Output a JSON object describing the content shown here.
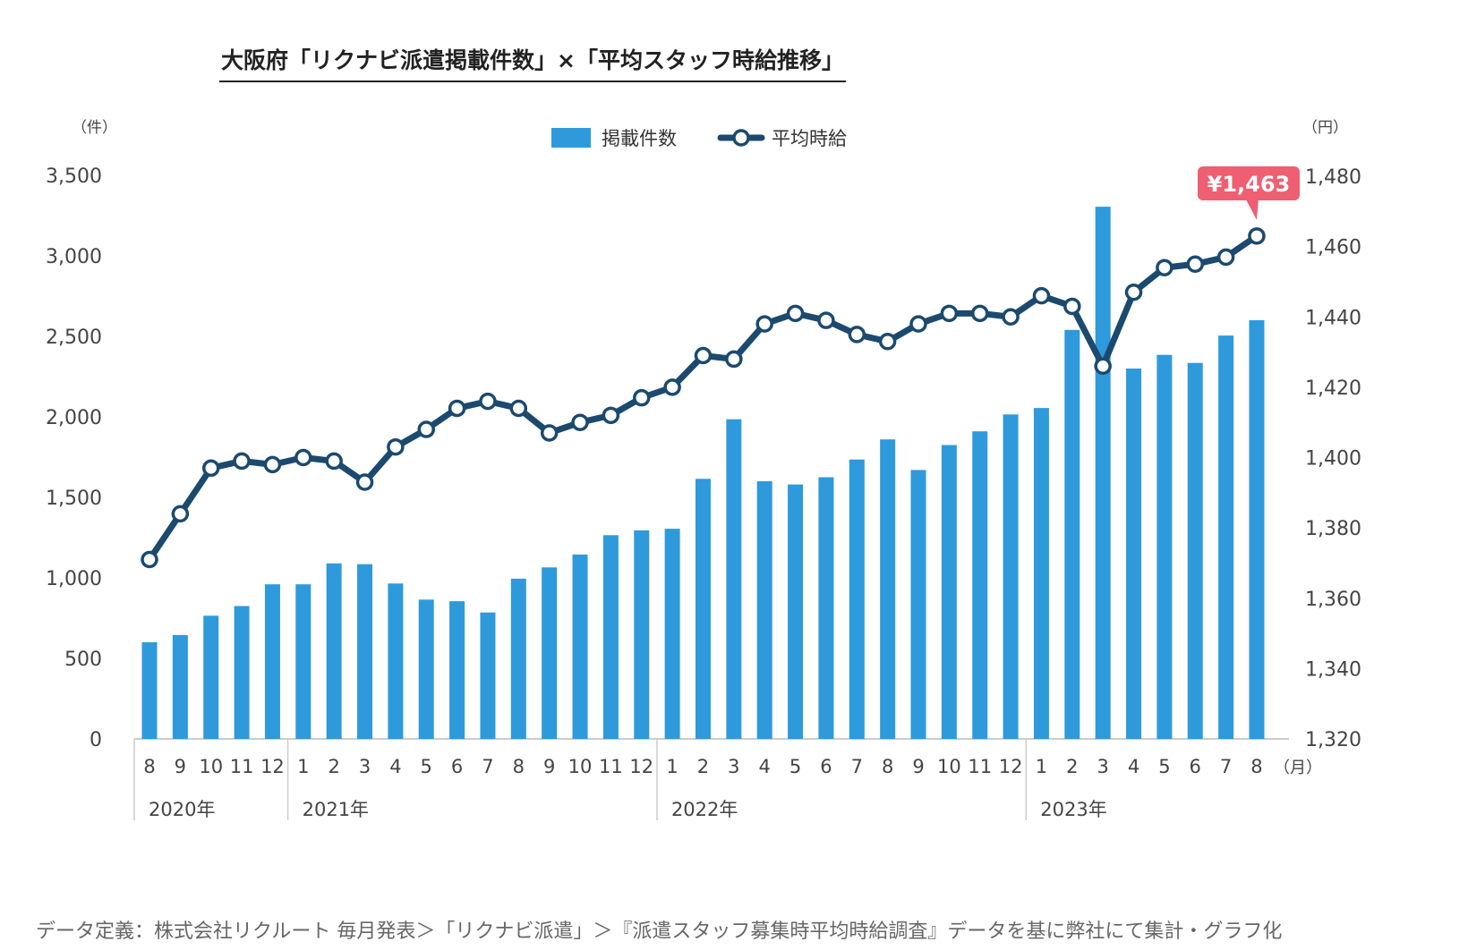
{
  "chart_data": {
    "type": "bar",
    "title": "大阪府「リクナビ派遣掲載件数」×「平均スタッフ時給推移」",
    "source": "データ定義：株式会社リクルート 毎月発表＞「リクナビ派遣」＞『派遣スタッフ募集時平均時給調査』データを基に弊社にて集計・グラフ化",
    "left_axis_unit": "（件）",
    "right_axis_unit": "（円）",
    "x_unit": "（月）",
    "ylim_left": [
      0,
      3500
    ],
    "ylim_right": [
      1320,
      1480
    ],
    "left_ticks": [
      "0",
      "500",
      "1,000",
      "1,500",
      "2,000",
      "2,500",
      "3,000",
      "3,500"
    ],
    "right_ticks": [
      "1,320",
      "1,340",
      "1,360",
      "1,380",
      "1,400",
      "1,420",
      "1,440",
      "1,460",
      "1,480"
    ],
    "months": [
      "8",
      "9",
      "10",
      "11",
      "12",
      "1",
      "2",
      "3",
      "4",
      "5",
      "6",
      "7",
      "8",
      "9",
      "10",
      "11",
      "12",
      "1",
      "2",
      "3",
      "4",
      "5",
      "6",
      "7",
      "8",
      "9",
      "10",
      "11",
      "12",
      "1",
      "2",
      "3",
      "4",
      "5",
      "6",
      "7",
      "8"
    ],
    "years": [
      {
        "label": "2020年",
        "start": 0
      },
      {
        "label": "2021年",
        "start": 5
      },
      {
        "label": "2022年",
        "start": 17
      },
      {
        "label": "2023年",
        "start": 29
      }
    ],
    "series": [
      {
        "name": "掲載件数",
        "type": "bar",
        "axis": "left",
        "color": "#2E9ADB",
        "values": [
          600,
          645,
          765,
          825,
          960,
          960,
          1090,
          1085,
          965,
          865,
          855,
          785,
          995,
          1065,
          1145,
          1265,
          1295,
          1305,
          1615,
          1985,
          1600,
          1580,
          1625,
          1735,
          1860,
          1670,
          1825,
          1910,
          2015,
          2055,
          2540,
          3305,
          2300,
          2385,
          2335,
          2505,
          2600
        ]
      },
      {
        "name": "平均時給",
        "type": "line",
        "axis": "right",
        "color": "#1B4A6E",
        "values": [
          1371,
          1384,
          1397,
          1399,
          1398,
          1400,
          1399,
          1393,
          1403,
          1408,
          1414,
          1416,
          1414,
          1407,
          1410,
          1412,
          1417,
          1420,
          1429,
          1428,
          1438,
          1441,
          1439,
          1435,
          1433,
          1438,
          1441,
          1441,
          1440,
          1446,
          1443,
          1426,
          1447,
          1454,
          1455,
          1457,
          1463
        ]
      }
    ],
    "callout": "¥1,463",
    "callout_color": "#EE5F72",
    "grid": false,
    "legend_position": "top-center"
  }
}
